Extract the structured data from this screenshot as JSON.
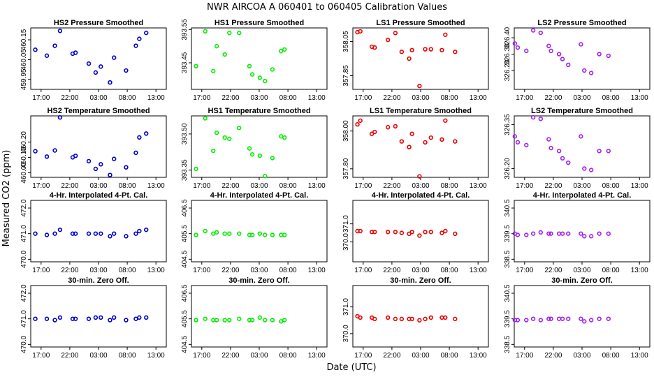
{
  "title": "NWR   AIRCOA A   060401 to 060405   Calibration Values",
  "xlabel": "Date (UTC)",
  "ylabel": "Measured CO2 (ppm)",
  "colors": {
    "HS2": "#0000cc",
    "HS1": "#00ee00",
    "LS1": "#ee0000",
    "LS2": "#a020f0"
  },
  "chart_data": [
    {
      "type": "scatter",
      "title": "HS2 Pressure Smoothed",
      "color": "#0000cc",
      "marker": "circle",
      "ylim": [
        459.9,
        460.21
      ],
      "yticks": [
        "459.95",
        "460.05",
        "460.15"
      ],
      "xticks": [
        "17:00",
        "22:00",
        "03:00",
        "08:00",
        "13:00"
      ],
      "xlim": [
        15.2,
        38.8
      ],
      "x": [
        16.0,
        18.0,
        19.4,
        20.3,
        22.5,
        23.0,
        25.3,
        26.5,
        27.4,
        29.0,
        29.7,
        31.8,
        33.5,
        34.1,
        35.3
      ],
      "y": [
        460.1,
        460.07,
        460.12,
        460.195,
        460.08,
        460.085,
        460.03,
        459.985,
        460.015,
        459.935,
        460.06,
        459.995,
        460.12,
        460.155,
        460.185
      ]
    },
    {
      "type": "scatter",
      "title": "HS1 Pressure Smoothed",
      "color": "#00ee00",
      "marker": "circle",
      "ylim": [
        393.37,
        393.555
      ],
      "yticks": [
        "393.45",
        "393.55"
      ],
      "xticks": [
        "17:00",
        "22:00",
        "03:00",
        "08:00",
        "13:00"
      ],
      "xlim": [
        15.2,
        38.8
      ],
      "x": [
        16.0,
        17.6,
        19.0,
        19.6,
        21.0,
        21.8,
        23.5,
        25.3,
        25.8,
        27.1,
        28.0,
        29.3,
        30.8,
        31.4
      ],
      "y": [
        393.44,
        393.545,
        393.425,
        393.5,
        393.475,
        393.54,
        393.54,
        393.44,
        393.415,
        393.405,
        393.395,
        393.43,
        393.485,
        393.49
      ]
    },
    {
      "type": "scatter",
      "title": "LS1 Pressure Smoothed",
      "color": "#ee0000",
      "marker": "circle",
      "ylim": [
        357.77,
        358.13
      ],
      "yticks": [
        "357.85",
        "358.05"
      ],
      "xticks": [
        "17:00",
        "22:00",
        "03:00",
        "08:00",
        "13:00"
      ],
      "xlim": [
        15.2,
        38.8
      ],
      "x": [
        16.0,
        16.5,
        18.5,
        19.0,
        21.3,
        22.6,
        23.7,
        25.0,
        25.5,
        26.8,
        27.8,
        28.8,
        30.7,
        31.3,
        33.0
      ],
      "y": [
        358.105,
        358.11,
        358.02,
        358.015,
        358.06,
        358.1,
        357.99,
        357.95,
        358.0,
        357.79,
        358.005,
        358.005,
        358.0,
        358.09,
        357.99
      ]
    },
    {
      "type": "scatter",
      "title": "LS2 Pressure Smoothed",
      "color": "#a020f0",
      "marker": "circle",
      "ylim": [
        326.085,
        326.46
      ],
      "yticks": [
        "326.20",
        "326.30",
        "326.40"
      ],
      "xticks": [
        "17:00",
        "22:00",
        "03:00",
        "08:00",
        "13:00"
      ],
      "xlim": [
        15.2,
        38.8
      ],
      "x": [
        15.3,
        15.8,
        17.3,
        18.5,
        19.8,
        21.2,
        21.6,
        23.0,
        23.6,
        24.6,
        26.8,
        27.4,
        28.6,
        30.0,
        31.6
      ],
      "y": [
        326.365,
        326.34,
        326.32,
        326.445,
        326.43,
        326.35,
        326.32,
        326.3,
        326.27,
        326.235,
        326.36,
        326.2,
        326.185,
        326.3,
        326.29
      ]
    },
    {
      "type": "scatter",
      "title": "HS2 Temperature Smoothed",
      "color": "#0000cc",
      "marker": "circle",
      "ylim": [
        459.97,
        460.37
      ],
      "yticks": [
        "460.00",
        "460.10",
        "460.20"
      ],
      "xticks": [
        "17:00",
        "22:00",
        "03:00",
        "08:00",
        "13:00"
      ],
      "xlim": [
        15.2,
        38.8
      ],
      "x": [
        16.0,
        18.0,
        19.4,
        20.3,
        22.5,
        23.0,
        25.3,
        26.5,
        27.4,
        29.0,
        29.7,
        31.8,
        33.5,
        34.1,
        35.3
      ],
      "y": [
        460.14,
        460.105,
        460.145,
        460.36,
        460.1,
        460.11,
        460.075,
        460.025,
        460.055,
        459.985,
        460.09,
        460.035,
        460.13,
        460.23,
        460.255
      ]
    },
    {
      "type": "scatter",
      "title": "HS1 Temperature Smoothed",
      "color": "#00ee00",
      "marker": "circle",
      "ylim": [
        393.32,
        393.575
      ],
      "yticks": [
        "393.35",
        "393.50"
      ],
      "xticks": [
        "17:00",
        "22:00",
        "03:00",
        "08:00",
        "13:00"
      ],
      "xlim": [
        15.2,
        38.8
      ],
      "x": [
        16.0,
        17.6,
        19.0,
        19.6,
        21.0,
        21.8,
        23.5,
        25.3,
        25.8,
        27.1,
        28.0,
        29.3,
        30.8,
        31.4
      ],
      "y": [
        393.355,
        393.565,
        393.43,
        393.505,
        393.485,
        393.48,
        393.525,
        393.44,
        393.415,
        393.41,
        393.325,
        393.4,
        393.49,
        393.485
      ]
    },
    {
      "type": "scatter",
      "title": "LS1 Temperature Smoothed",
      "color": "#ee0000",
      "marker": "circle",
      "ylim": [
        357.755,
        358.08
      ],
      "yticks": [
        "357.80",
        "358.00"
      ],
      "xticks": [
        "17:00",
        "22:00",
        "03:00",
        "08:00",
        "13:00"
      ],
      "xlim": [
        15.2,
        38.8
      ],
      "x": [
        16.0,
        16.5,
        18.5,
        19.0,
        21.3,
        22.6,
        23.7,
        25.0,
        25.5,
        26.8,
        27.8,
        28.8,
        30.7,
        31.3,
        33.0
      ],
      "y": [
        358.035,
        358.055,
        357.985,
        357.995,
        358.02,
        358.025,
        357.945,
        357.915,
        357.985,
        357.76,
        357.94,
        357.965,
        357.955,
        358.055,
        357.945
      ]
    },
    {
      "type": "scatter",
      "title": "LS2 Temperature Smoothed",
      "color": "#a020f0",
      "marker": "circle",
      "ylim": [
        326.17,
        326.38
      ],
      "yticks": [
        "326.20",
        "326.35"
      ],
      "xticks": [
        "17:00",
        "22:00",
        "03:00",
        "08:00",
        "13:00"
      ],
      "xlim": [
        15.2,
        38.8
      ],
      "x": [
        15.3,
        15.8,
        17.3,
        18.5,
        19.8,
        21.2,
        21.6,
        23.0,
        23.6,
        24.6,
        26.8,
        27.4,
        28.6,
        30.0,
        31.6
      ],
      "y": [
        326.31,
        326.29,
        326.28,
        326.375,
        326.37,
        326.3,
        326.27,
        326.26,
        326.235,
        326.22,
        326.31,
        326.2,
        326.195,
        326.26,
        326.26
      ]
    },
    {
      "type": "scatter",
      "title": "4-Hr. Interpolated 4-Pt. Cal.",
      "color": "#0000cc",
      "marker": "circle",
      "ylim": [
        469.9,
        472.3
      ],
      "yticks": [
        "470.0",
        "471.0",
        "472.0"
      ],
      "xticks": [
        "17:00",
        "22:00",
        "03:00",
        "08:00",
        "13:00"
      ],
      "xlim": [
        15.2,
        38.8
      ],
      "x": [
        16.0,
        18.0,
        19.4,
        20.3,
        22.5,
        23.0,
        25.3,
        26.5,
        27.4,
        29.0,
        29.7,
        31.8,
        33.5,
        34.1,
        35.3
      ],
      "y": [
        471.0,
        470.95,
        471.0,
        471.15,
        471.0,
        471.0,
        471.0,
        471.0,
        471.0,
        470.9,
        471.0,
        470.9,
        471.0,
        471.1,
        471.15
      ]
    },
    {
      "type": "scatter",
      "title": "4-Hr. Interpolated 4-Pt. Cal.",
      "color": "#00ee00",
      "marker": "circle",
      "ylim": [
        404.4,
        406.8
      ],
      "yticks": [
        "404.5",
        "405.5",
        "406.5"
      ],
      "xticks": [
        "17:00",
        "22:00",
        "03:00",
        "08:00",
        "13:00"
      ],
      "xlim": [
        15.2,
        38.8
      ],
      "x": [
        16.0,
        17.6,
        19.0,
        19.6,
        21.0,
        21.8,
        23.5,
        25.3,
        25.8,
        27.1,
        28.0,
        29.3,
        30.8,
        31.4
      ],
      "y": [
        405.45,
        405.6,
        405.5,
        405.55,
        405.5,
        405.5,
        405.5,
        405.45,
        405.45,
        405.5,
        405.45,
        405.45,
        405.45,
        405.45
      ]
    },
    {
      "type": "scatter",
      "title": "4-Hr. Interpolated 4-Pt. Cal.",
      "color": "#ee0000",
      "marker": "circle",
      "ylim": [
        368.9,
        372.3
      ],
      "yticks": [
        "370.0",
        "371.0"
      ],
      "xticks": [
        "17:00",
        "22:00",
        "03:00",
        "08:00",
        "13:00"
      ],
      "xlim": [
        15.2,
        38.8
      ],
      "x": [
        16.0,
        16.5,
        18.5,
        19.0,
        21.3,
        22.6,
        23.7,
        25.0,
        25.5,
        26.8,
        27.8,
        28.8,
        30.7,
        31.3,
        33.0
      ],
      "y": [
        370.6,
        370.6,
        370.55,
        370.55,
        370.55,
        370.55,
        370.5,
        370.45,
        370.55,
        370.35,
        370.55,
        370.55,
        370.5,
        370.6,
        370.45
      ]
    },
    {
      "type": "scatter",
      "title": "4-Hr. Interpolated 4-Pt. Cal.",
      "color": "#a020f0",
      "marker": "circle",
      "ylim": [
        338.4,
        340.8
      ],
      "yticks": [
        "338.5",
        "339.5",
        "340.5"
      ],
      "xticks": [
        "17:00",
        "22:00",
        "03:00",
        "08:00",
        "13:00"
      ],
      "xlim": [
        15.2,
        38.8
      ],
      "x": [
        15.3,
        15.8,
        17.3,
        18.5,
        19.8,
        21.2,
        21.6,
        23.0,
        23.6,
        24.6,
        26.8,
        27.4,
        28.6,
        30.0,
        31.6
      ],
      "y": [
        339.5,
        339.45,
        339.45,
        339.5,
        339.55,
        339.5,
        339.5,
        339.5,
        339.5,
        339.5,
        339.5,
        339.4,
        339.4,
        339.5,
        339.5
      ]
    },
    {
      "type": "scatter",
      "title": "30-min. Zero Off.",
      "color": "#0000cc",
      "marker": "circle",
      "ylim": [
        469.9,
        472.3
      ],
      "yticks": [
        "470.0",
        "471.0",
        "472.0"
      ],
      "xticks": [
        "17:00",
        "22:00",
        "03:00",
        "08:00",
        "13:00"
      ],
      "xlim": [
        15.2,
        38.8
      ],
      "x": [
        16.0,
        18.0,
        19.4,
        20.3,
        22.5,
        23.0,
        25.3,
        26.5,
        27.4,
        29.0,
        29.7,
        31.8,
        33.5,
        34.1,
        35.3
      ],
      "y": [
        471.0,
        471.0,
        470.95,
        471.05,
        471.0,
        471.0,
        471.0,
        471.05,
        471.05,
        470.95,
        471.05,
        470.95,
        471.0,
        471.05,
        471.05
      ]
    },
    {
      "type": "scatter",
      "title": "30-min. Zero Off.",
      "color": "#00ee00",
      "marker": "circle",
      "ylim": [
        404.4,
        406.8
      ],
      "yticks": [
        "404.5",
        "405.5",
        "406.5"
      ],
      "xticks": [
        "17:00",
        "22:00",
        "03:00",
        "08:00",
        "13:00"
      ],
      "xlim": [
        15.2,
        38.8
      ],
      "x": [
        16.0,
        17.6,
        19.0,
        19.6,
        21.0,
        21.8,
        23.5,
        25.3,
        25.8,
        27.1,
        28.0,
        29.3,
        30.8,
        31.4
      ],
      "y": [
        405.45,
        405.5,
        405.45,
        405.45,
        405.45,
        405.45,
        405.5,
        405.45,
        405.45,
        405.55,
        405.45,
        405.45,
        405.4,
        405.45
      ]
    },
    {
      "type": "scatter",
      "title": "30-min. Zero Off.",
      "color": "#ee0000",
      "marker": "circle",
      "ylim": [
        369.5,
        371.8
      ],
      "yticks": [
        "370.0",
        "371.0"
      ],
      "xticks": [
        "17:00",
        "22:00",
        "03:00",
        "08:00",
        "13:00"
      ],
      "xlim": [
        15.2,
        38.8
      ],
      "x": [
        16.0,
        16.5,
        18.5,
        19.0,
        21.3,
        22.6,
        23.7,
        25.0,
        25.5,
        26.8,
        27.8,
        28.8,
        30.7,
        31.3,
        33.0
      ],
      "y": [
        370.65,
        370.6,
        370.6,
        370.55,
        370.6,
        370.55,
        370.55,
        370.55,
        370.55,
        370.5,
        370.55,
        370.6,
        370.6,
        370.6,
        370.55
      ]
    },
    {
      "type": "scatter",
      "title": "30-min. Zero Off.",
      "color": "#a020f0",
      "marker": "circle",
      "ylim": [
        338.4,
        340.8
      ],
      "yticks": [
        "338.5",
        "339.5",
        "340.5"
      ],
      "xticks": [
        "17:00",
        "22:00",
        "03:00",
        "08:00",
        "13:00"
      ],
      "xlim": [
        15.2,
        38.8
      ],
      "x": [
        15.3,
        15.8,
        17.3,
        18.5,
        19.8,
        21.2,
        21.6,
        23.0,
        23.6,
        24.6,
        26.8,
        27.4,
        28.6,
        30.0,
        31.6
      ],
      "y": [
        339.45,
        339.45,
        339.45,
        339.5,
        339.45,
        339.5,
        339.5,
        339.5,
        339.5,
        339.5,
        339.5,
        339.4,
        339.45,
        339.5,
        339.5
      ]
    }
  ]
}
